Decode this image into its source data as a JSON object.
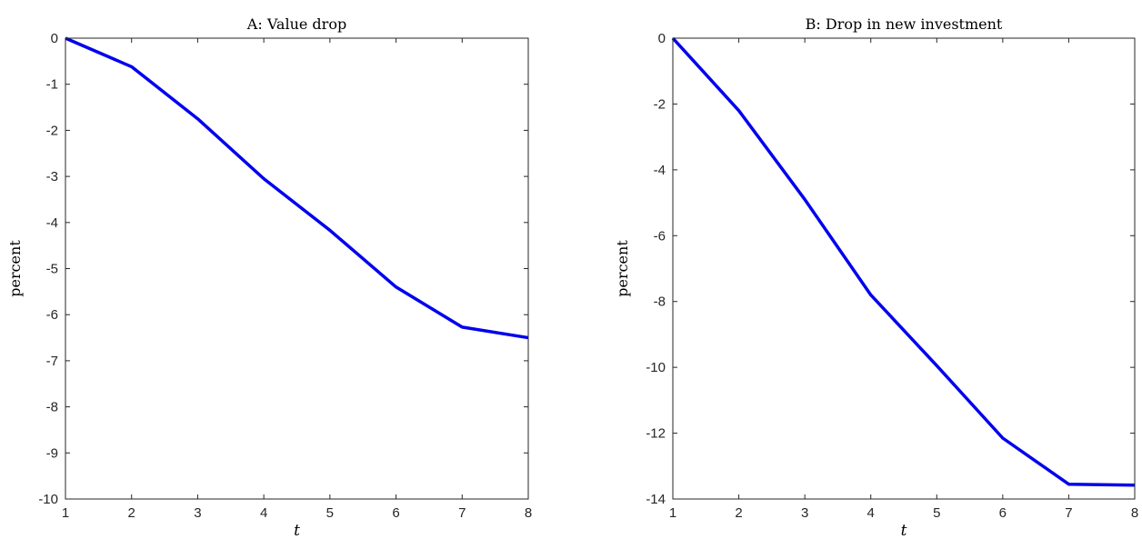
{
  "chart_data": [
    {
      "type": "line",
      "title": "A: Value drop",
      "xlabel": "t",
      "ylabel": "percent",
      "xlim": [
        1,
        8
      ],
      "ylim": [
        -10,
        0
      ],
      "xticks": [
        "1",
        "2",
        "3",
        "4",
        "5",
        "6",
        "7",
        "8"
      ],
      "yticks": [
        "0",
        "-1",
        "-2",
        "-3",
        "-4",
        "-5",
        "-6",
        "-7",
        "-8",
        "-9",
        "-10"
      ],
      "grid": false,
      "series": [
        {
          "color": "#0000ee",
          "x": [
            1,
            2,
            3,
            4,
            5,
            6,
            7,
            8
          ],
          "y": [
            0,
            -0.62,
            -1.75,
            -3.05,
            -4.17,
            -5.4,
            -6.27,
            -6.5
          ]
        }
      ]
    },
    {
      "type": "line",
      "title": "B: Drop in new investment",
      "xlabel": "t",
      "ylabel": "percent",
      "xlim": [
        1,
        8
      ],
      "ylim": [
        -14,
        0
      ],
      "xticks": [
        "1",
        "2",
        "3",
        "4",
        "5",
        "6",
        "7",
        "8"
      ],
      "yticks": [
        "0",
        "-2",
        "-4",
        "-6",
        "-8",
        "-10",
        "-12",
        "-14"
      ],
      "grid": false,
      "series": [
        {
          "color": "#0000ee",
          "x": [
            1,
            2,
            3,
            4,
            5,
            6,
            7,
            8
          ],
          "y": [
            0,
            -2.2,
            -4.9,
            -7.8,
            -9.95,
            -12.15,
            -13.55,
            -13.58
          ]
        }
      ]
    }
  ]
}
